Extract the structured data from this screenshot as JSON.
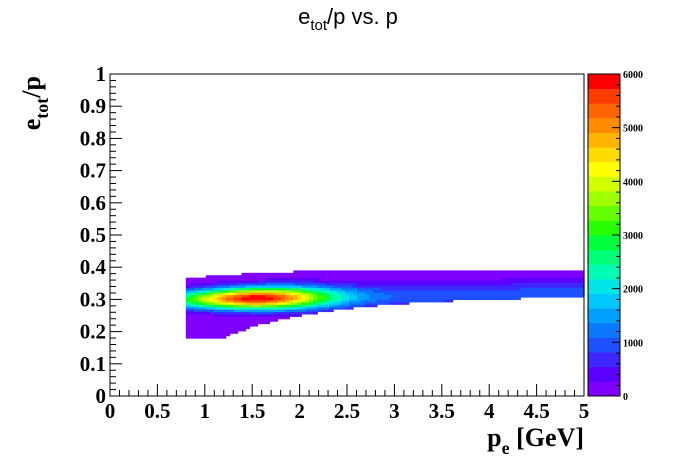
{
  "chart_data": {
    "type": "heatmap",
    "title": {
      "main": "e",
      "sub": "tot",
      "rest": "/p vs. p"
    },
    "xlabel": {
      "main": "p",
      "sub": "e",
      "rest": " [GeV]"
    },
    "ylabel": {
      "main": "e",
      "sub": "tot",
      "rest": "/p"
    },
    "xlim": [
      0,
      5
    ],
    "ylim": [
      0,
      1
    ],
    "x_ticks": [
      "0",
      "0.5",
      "1",
      "1.5",
      "2",
      "2.5",
      "3",
      "3.5",
      "4",
      "4.5",
      "5"
    ],
    "y_ticks": [
      "0",
      "0.1",
      "0.2",
      "0.3",
      "0.4",
      "0.5",
      "0.6",
      "0.7",
      "0.8",
      "0.9",
      "1"
    ],
    "colorbar": {
      "range": [
        0,
        6000
      ],
      "ticks": [
        "0",
        "1000",
        "2000",
        "3000",
        "4000",
        "5000",
        "6000"
      ],
      "colors": [
        "#7f00ff",
        "#5a00ff",
        "#3c28ff",
        "#1e50ff",
        "#0a78ff",
        "#00a0ff",
        "#00c8ff",
        "#00e6e6",
        "#00ffb4",
        "#00ff78",
        "#00ff3c",
        "#28ff00",
        "#64ff00",
        "#a0ff00",
        "#d2ff00",
        "#ffff00",
        "#ffdc00",
        "#ffb400",
        "#ff8c00",
        "#ff6400",
        "#ff3c00",
        "#ff0000"
      ]
    },
    "density_model": {
      "x_start": 0.8,
      "x_end": 5.0,
      "peak_x": 1.55,
      "peak_y": 0.305,
      "peak_value": 6000
    }
  }
}
